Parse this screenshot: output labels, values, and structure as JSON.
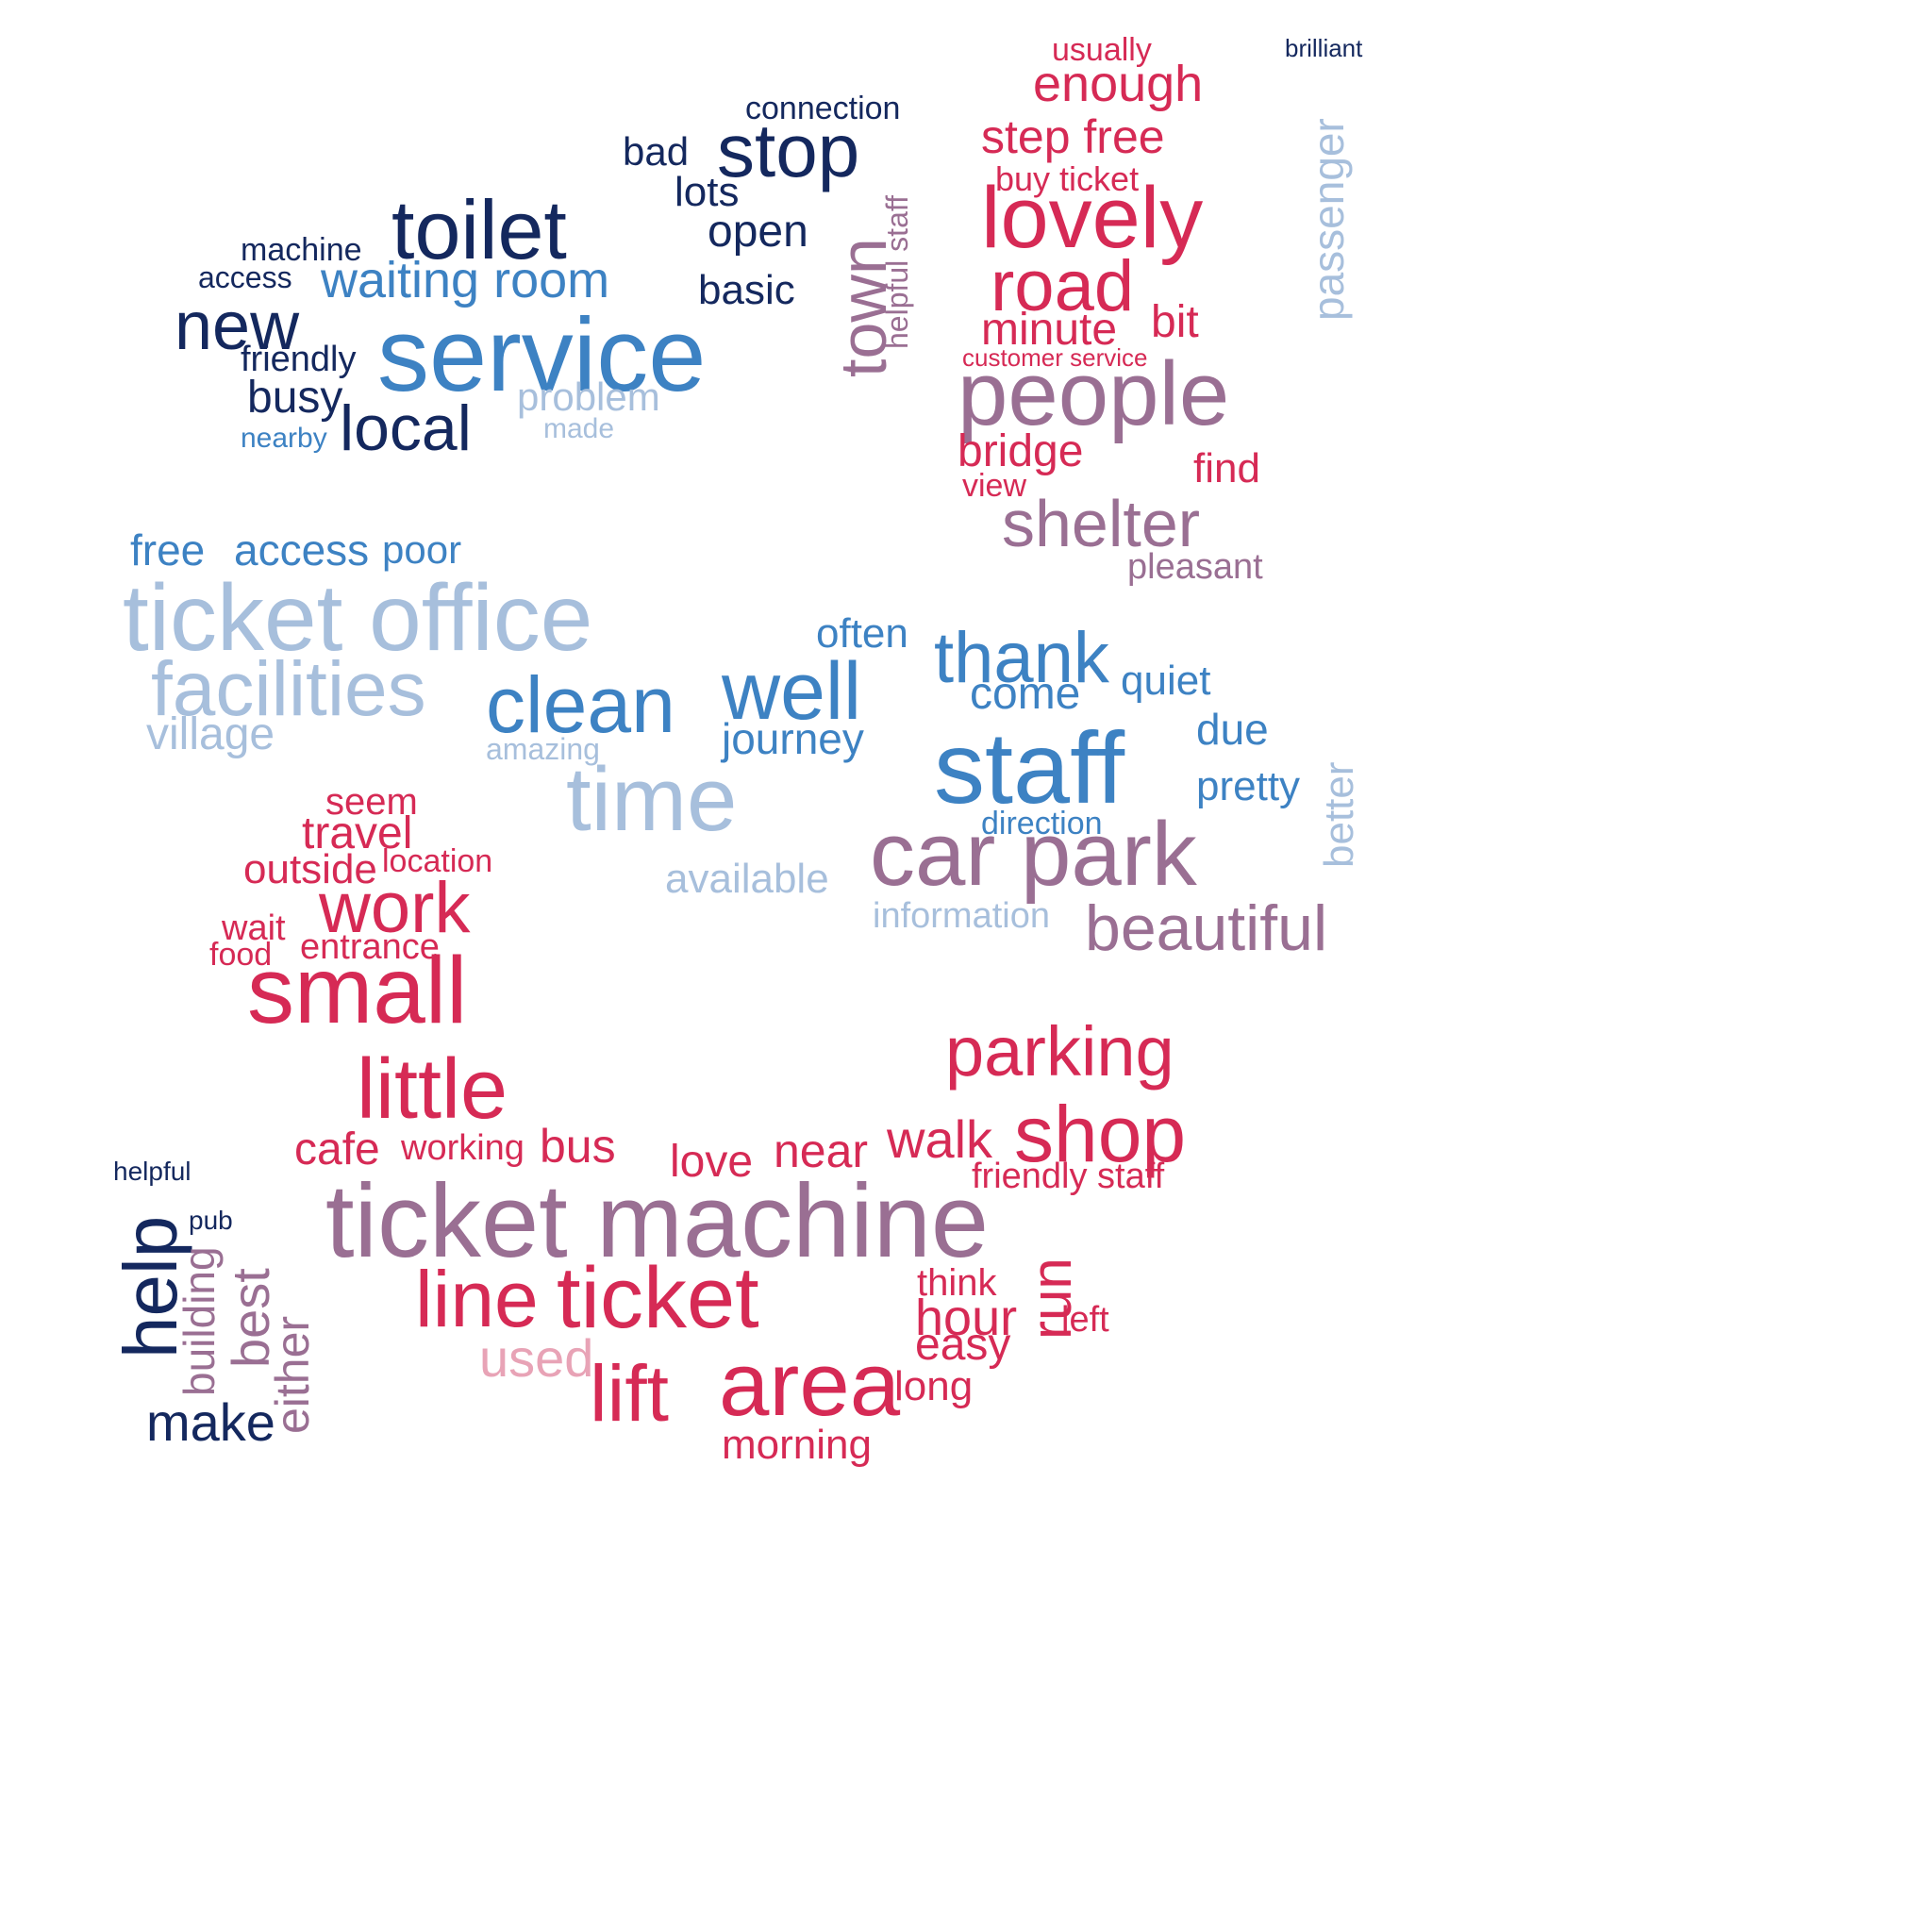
{
  "colors": {
    "navy": "#14285e",
    "blue": "#3d82c3",
    "lightblue": "#a7bfdc",
    "red": "#d62a55",
    "purple": "#9a6f93",
    "pink": "#e8a3b6"
  },
  "shapes": [
    "upper-left-tilted-block",
    "upper-right-rounded-block",
    "middle-horizontal-band",
    "lower-u-curve",
    "lower-left-block",
    "small-right-strip"
  ],
  "words": [
    {
      "t": "service",
      "c": "blue"
    },
    {
      "t": "toilet",
      "c": "navy"
    },
    {
      "t": "stop",
      "c": "navy"
    },
    {
      "t": "new",
      "c": "navy"
    },
    {
      "t": "waiting room",
      "c": "blue"
    },
    {
      "t": "local",
      "c": "navy"
    },
    {
      "t": "town",
      "c": "purple"
    },
    {
      "t": "open",
      "c": "navy"
    },
    {
      "t": "bad",
      "c": "navy"
    },
    {
      "t": "lots",
      "c": "navy"
    },
    {
      "t": "basic",
      "c": "navy"
    },
    {
      "t": "busy",
      "c": "navy"
    },
    {
      "t": "problem",
      "c": "lightblue"
    },
    {
      "t": "connection",
      "c": "navy"
    },
    {
      "t": "friendly",
      "c": "navy"
    },
    {
      "t": "machine",
      "c": "navy"
    },
    {
      "t": "access",
      "c": "navy"
    },
    {
      "t": "helpful staff",
      "c": "purple"
    },
    {
      "t": "made",
      "c": "lightblue"
    },
    {
      "t": "nearby",
      "c": "blue"
    },
    {
      "t": "lovely",
      "c": "red"
    },
    {
      "t": "people",
      "c": "purple"
    },
    {
      "t": "road",
      "c": "red"
    },
    {
      "t": "enough",
      "c": "red"
    },
    {
      "t": "step free",
      "c": "red"
    },
    {
      "t": "minute",
      "c": "red"
    },
    {
      "t": "bit",
      "c": "red"
    },
    {
      "t": "bridge",
      "c": "red"
    },
    {
      "t": "shelter",
      "c": "purple"
    },
    {
      "t": "find",
      "c": "red"
    },
    {
      "t": "buy ticket",
      "c": "red"
    },
    {
      "t": "usually",
      "c": "red"
    },
    {
      "t": "customer service",
      "c": "red"
    },
    {
      "t": "pleasant",
      "c": "purple"
    },
    {
      "t": "view",
      "c": "red"
    },
    {
      "t": "passenger",
      "c": "lightblue"
    },
    {
      "t": "brilliant",
      "c": "navy"
    },
    {
      "t": "ticket office",
      "c": "lightblue"
    },
    {
      "t": "facilities",
      "c": "lightblue"
    },
    {
      "t": "clean",
      "c": "blue"
    },
    {
      "t": "well",
      "c": "blue"
    },
    {
      "t": "thank",
      "c": "blue"
    },
    {
      "t": "time",
      "c": "lightblue"
    },
    {
      "t": "staff",
      "c": "blue"
    },
    {
      "t": "village",
      "c": "lightblue"
    },
    {
      "t": "free",
      "c": "blue"
    },
    {
      "t": "access",
      "c": "blue"
    },
    {
      "t": "poor",
      "c": "blue"
    },
    {
      "t": "come",
      "c": "blue"
    },
    {
      "t": "journey",
      "c": "blue"
    },
    {
      "t": "quiet",
      "c": "blue"
    },
    {
      "t": "often",
      "c": "blue"
    },
    {
      "t": "due",
      "c": "blue"
    },
    {
      "t": "pretty",
      "c": "blue"
    },
    {
      "t": "amazing",
      "c": "lightblue"
    },
    {
      "t": "available",
      "c": "lightblue"
    },
    {
      "t": "information",
      "c": "lightblue"
    },
    {
      "t": "direction",
      "c": "blue"
    },
    {
      "t": "better",
      "c": "lightblue"
    },
    {
      "t": "car park",
      "c": "purple"
    },
    {
      "t": "beautiful",
      "c": "purple"
    },
    {
      "t": "small",
      "c": "red"
    },
    {
      "t": "work",
      "c": "red"
    },
    {
      "t": "little",
      "c": "red"
    },
    {
      "t": "travel",
      "c": "red"
    },
    {
      "t": "outside",
      "c": "red"
    },
    {
      "t": "location",
      "c": "red"
    },
    {
      "t": "entrance",
      "c": "red"
    },
    {
      "t": "seem",
      "c": "red"
    },
    {
      "t": "wait",
      "c": "red"
    },
    {
      "t": "food",
      "c": "red"
    },
    {
      "t": "cafe",
      "c": "red"
    },
    {
      "t": "working",
      "c": "red"
    },
    {
      "t": "bus",
      "c": "red"
    },
    {
      "t": "love",
      "c": "red"
    },
    {
      "t": "near",
      "c": "red"
    },
    {
      "t": "parking",
      "c": "red"
    },
    {
      "t": "shop",
      "c": "red"
    },
    {
      "t": "walk",
      "c": "red"
    },
    {
      "t": "friendly staff",
      "c": "red"
    },
    {
      "t": "ticket machine",
      "c": "purple"
    },
    {
      "t": "ticket",
      "c": "red"
    },
    {
      "t": "line",
      "c": "red"
    },
    {
      "t": "area",
      "c": "red"
    },
    {
      "t": "lift",
      "c": "red"
    },
    {
      "t": "used",
      "c": "pink"
    },
    {
      "t": "hour",
      "c": "red"
    },
    {
      "t": "easy",
      "c": "red"
    },
    {
      "t": "long",
      "c": "red"
    },
    {
      "t": "think",
      "c": "red"
    },
    {
      "t": "morning",
      "c": "red"
    },
    {
      "t": "run",
      "c": "red"
    },
    {
      "t": "left",
      "c": "red"
    },
    {
      "t": "help",
      "c": "navy"
    },
    {
      "t": "make",
      "c": "navy"
    },
    {
      "t": "best",
      "c": "purple"
    },
    {
      "t": "building",
      "c": "purple"
    },
    {
      "t": "either",
      "c": "purple"
    },
    {
      "t": "helpful",
      "c": "navy"
    },
    {
      "t": "pub",
      "c": "navy"
    }
  ]
}
